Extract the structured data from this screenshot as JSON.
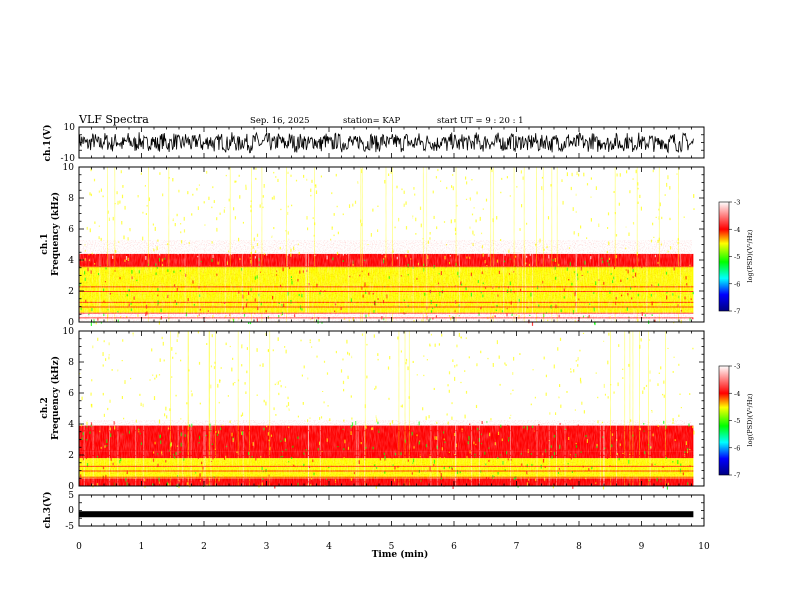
{
  "header": {
    "title": "VLF Spectra",
    "date": "Sep. 16, 2025",
    "station": "station= KAP",
    "start_ut": "start  UT =   9 : 20 : 1"
  },
  "chart_data": [
    {
      "type": "line",
      "name": "ch1-waveform",
      "ylabel": "ch.1(V)",
      "ylim": [
        -10,
        10
      ],
      "y_tick_labels": [
        "10",
        "-10"
      ],
      "x_range_min": [
        0,
        9.83
      ],
      "description_values": "dense noisy waveform, amplitude roughly ±6 V"
    },
    {
      "type": "heatmap",
      "name": "ch1-spectrogram",
      "ylabel": "Frequency  (kHz)",
      "channel_label": "ch.1",
      "ylim": [
        0,
        10
      ],
      "y_tick_labels": [
        "0",
        "2",
        "4",
        "6",
        "8",
        "10"
      ],
      "bands_khz": [
        {
          "from": 0.0,
          "to": 0.6,
          "level": -3.3
        },
        {
          "from": 0.6,
          "to": 1.1,
          "level": -4.6
        },
        {
          "from": 1.1,
          "to": 2.0,
          "level": -4.5
        },
        {
          "from": 2.0,
          "to": 3.6,
          "level": -4.6
        },
        {
          "from": 3.6,
          "to": 4.4,
          "level": -4.0
        },
        {
          "from": 4.4,
          "to": 10.0,
          "level": -3.4
        }
      ],
      "colorbar": {
        "label": "log(PSD)(V²/Hz)",
        "range": [
          -7,
          -3
        ],
        "tick_labels": [
          "-3",
          "-4",
          "-5",
          "-6",
          "-7"
        ]
      }
    },
    {
      "type": "heatmap",
      "name": "ch2-spectrogram",
      "ylabel": "Frequency  (kHz)",
      "channel_label": "ch.2",
      "ylim": [
        0,
        10
      ],
      "y_tick_labels": [
        "0",
        "2",
        "4",
        "6",
        "8",
        "10"
      ],
      "bands_khz": [
        {
          "from": 0.0,
          "to": 0.5,
          "level": -4.0
        },
        {
          "from": 0.5,
          "to": 1.8,
          "level": -4.8
        },
        {
          "from": 1.8,
          "to": 2.2,
          "level": -4.2
        },
        {
          "from": 2.2,
          "to": 3.9,
          "level": -4.1
        },
        {
          "from": 3.9,
          "to": 10.0,
          "level": -3.6
        }
      ],
      "colorbar": {
        "label": "log(PSD)(V²/Hz)",
        "range": [
          -7,
          -3
        ],
        "tick_labels": [
          "-3",
          "-4",
          "-5",
          "-6",
          "-7"
        ]
      }
    },
    {
      "type": "line",
      "name": "ch3-waveform",
      "ylabel": "ch.3(V)",
      "ylim": [
        -5,
        5
      ],
      "y_tick_labels": [
        "5",
        "0",
        "-5"
      ],
      "level_v": -1.2,
      "x_range_min": [
        0,
        9.83
      ]
    }
  ],
  "x_axis": {
    "label": "Time  (min)",
    "range": [
      0,
      10
    ],
    "tick_labels": [
      "0",
      "1",
      "2",
      "3",
      "4",
      "5",
      "6",
      "7",
      "8",
      "9",
      "10"
    ]
  },
  "colors": {
    "white": "#ffffff",
    "red": "#ff0000",
    "yellow": "#ffff00",
    "green": "#00ff00",
    "cyan": "#00ffff",
    "blue": "#0000ff",
    "navy": "#000080"
  }
}
